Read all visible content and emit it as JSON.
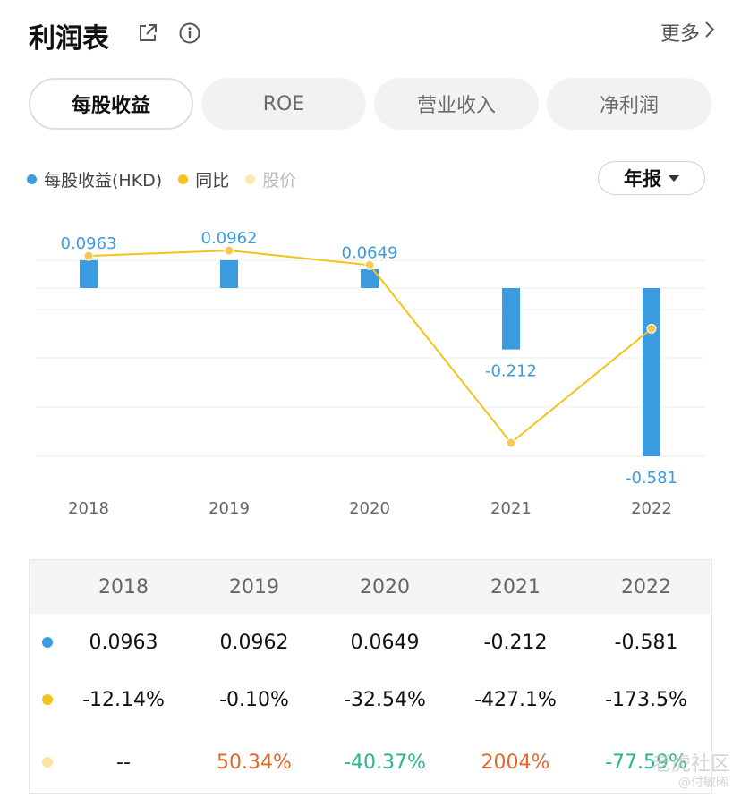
{
  "header": {
    "title": "利润表",
    "more_label": "更多"
  },
  "tabs": [
    {
      "label": "每股收益",
      "active": true
    },
    {
      "label": "ROE",
      "active": false
    },
    {
      "label": "营业收入",
      "active": false
    },
    {
      "label": "净利润",
      "active": false
    }
  ],
  "legend": [
    {
      "label": "每股收益(HKD)",
      "color": "#3a9be0"
    },
    {
      "label": "同比",
      "color": "#f5c21b"
    },
    {
      "label": "股价",
      "color": "#fbe9b0"
    }
  ],
  "period_selector": {
    "label": "年报"
  },
  "chart_data": {
    "type": "bar",
    "categories": [
      "2018",
      "2019",
      "2020",
      "2021",
      "2022"
    ],
    "series": [
      {
        "name": "每股收益(HKD)",
        "type": "bar",
        "color": "#3a9be0",
        "values": [
          0.0963,
          0.0962,
          0.0649,
          -0.212,
          -0.581
        ]
      },
      {
        "name": "同比",
        "type": "line",
        "color": "#f5c21b",
        "values": [
          -12.14,
          -0.1,
          -32.54,
          -427.1,
          -173.5
        ]
      }
    ],
    "data_labels": [
      "0.0963",
      "0.0962",
      "0.0649",
      "-0.212",
      "-0.581"
    ],
    "grid": true,
    "legend_position": "top-left"
  },
  "table": {
    "years": [
      "2018",
      "2019",
      "2020",
      "2021",
      "2022"
    ],
    "rows": [
      {
        "color": "#3a9be0",
        "values": [
          "0.0963",
          "0.0962",
          "0.0649",
          "-0.212",
          "-0.581"
        ]
      },
      {
        "color": "#f5c21b",
        "values": [
          "-12.14%",
          "-0.10%",
          "-32.54%",
          "-427.1%",
          "-173.5%"
        ]
      },
      {
        "color": "#fbe3a0",
        "values": [
          "--",
          "50.34%",
          "-40.37%",
          "2004%",
          "-77.59%"
        ],
        "tones": [
          "",
          "pos",
          "neg",
          "pos",
          "neg"
        ]
      }
    ]
  },
  "watermark": {
    "text": "老虎社区",
    "subtext": "@付敏晞"
  }
}
